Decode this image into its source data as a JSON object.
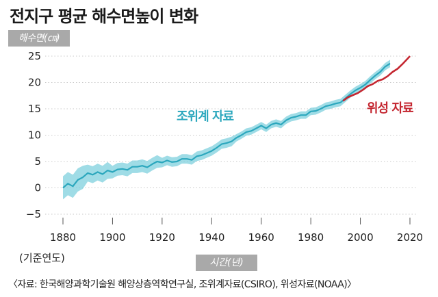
{
  "header": {
    "title": "전지구 평균 해수면높이 변화",
    "unit_badge": "해수면(㎝)",
    "x_badge": "시간(년)",
    "base_year": "(기준연도)"
  },
  "source_note": "〈자료: 한국해양과학기술원 해양상층역학연구실, 조위계자료(CSIRO), 위성자료(NOAA)〉",
  "colors": {
    "tide": "#2ba7bd",
    "tide_band": "#7fd0de",
    "satellite": "#c42630",
    "grid": "#c8c8c8"
  },
  "chart_data": {
    "type": "line",
    "title": "전지구 평균 해수면높이 변화",
    "xlabel": "시간(년)",
    "ylabel": "해수면(㎝)",
    "xlim": [
      1880,
      2020
    ],
    "ylim": [
      -5,
      25
    ],
    "x_ticks": [
      1880,
      1900,
      1920,
      1940,
      1960,
      1980,
      2000,
      2020
    ],
    "y_ticks": [
      25,
      20,
      15,
      10,
      5,
      0,
      -5
    ],
    "grid": "horizontal dotted",
    "series": [
      {
        "name": "조위계 자료",
        "color": "#2ba7bd",
        "x": [
          1880,
          1882,
          1884,
          1886,
          1888,
          1890,
          1892,
          1894,
          1896,
          1898,
          1900,
          1902,
          1904,
          1906,
          1908,
          1910,
          1912,
          1914,
          1916,
          1918,
          1920,
          1922,
          1924,
          1926,
          1928,
          1930,
          1932,
          1934,
          1936,
          1938,
          1940,
          1942,
          1944,
          1946,
          1948,
          1950,
          1952,
          1954,
          1956,
          1958,
          1960,
          1962,
          1964,
          1966,
          1968,
          1970,
          1972,
          1974,
          1976,
          1978,
          1980,
          1982,
          1984,
          1986,
          1988,
          1990,
          1992,
          1994,
          1996,
          1998,
          2000,
          2002,
          2004,
          2006,
          2008,
          2010,
          2012
        ],
        "y": [
          0,
          0.8,
          0.3,
          1.5,
          2.0,
          2.8,
          2.5,
          3.0,
          2.6,
          3.3,
          3.0,
          3.5,
          3.6,
          3.4,
          4.0,
          4.0,
          4.2,
          3.9,
          4.5,
          5.0,
          4.8,
          5.2,
          4.9,
          5.0,
          5.5,
          5.5,
          5.3,
          6.0,
          6.2,
          6.6,
          7.0,
          7.6,
          8.3,
          8.5,
          8.8,
          9.5,
          10.0,
          10.6,
          10.8,
          11.3,
          11.8,
          11.3,
          12.0,
          12.3,
          12.0,
          12.8,
          13.3,
          13.5,
          13.8,
          13.8,
          14.5,
          14.6,
          15.0,
          15.5,
          15.7,
          16.0,
          16.2,
          17.0,
          17.8,
          18.5,
          19.0,
          19.6,
          20.5,
          21.3,
          22.0,
          23.0,
          23.6
        ]
      },
      {
        "name": "위성 자료",
        "color": "#c42630",
        "x": [
          1993,
          1995,
          1997,
          1999,
          2001,
          2003,
          2005,
          2007,
          2009,
          2011,
          2013,
          2015,
          2017,
          2019,
          2020
        ],
        "y": [
          16.5,
          17.2,
          17.6,
          18.0,
          18.6,
          19.3,
          19.7,
          20.3,
          20.6,
          21.2,
          22.0,
          22.6,
          23.5,
          24.5,
          25.0
        ]
      }
    ]
  }
}
